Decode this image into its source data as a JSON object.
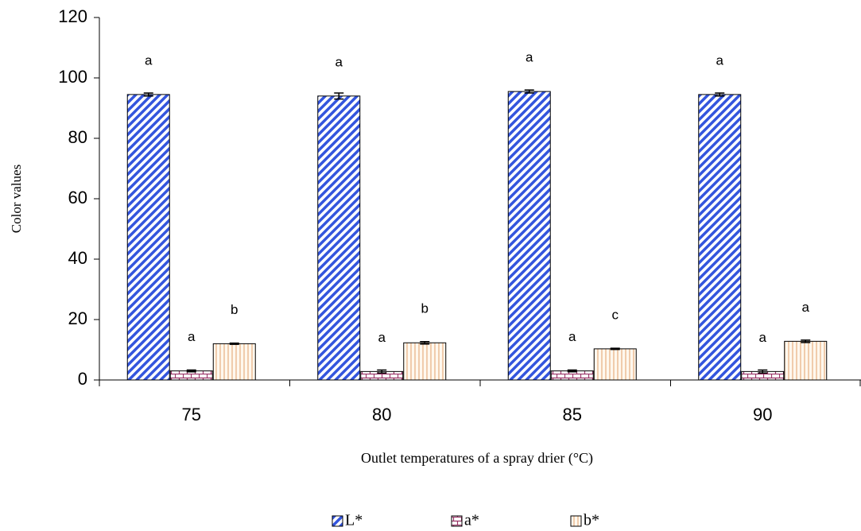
{
  "chart_data": {
    "type": "bar",
    "y_label": "Color values",
    "x_label": "Outlet temperatures of a spray drier (°C)",
    "categories": [
      "75",
      "80",
      "85",
      "90"
    ],
    "series": [
      {
        "name": "L*",
        "color": "#3355dd",
        "values": [
          94.5,
          94,
          95.5,
          94.5
        ],
        "errors": [
          0.5,
          1,
          0.5,
          0.5
        ],
        "letters": [
          "a",
          "a",
          "a",
          "a"
        ]
      },
      {
        "name": "a*",
        "color": "#993366",
        "values": [
          3,
          2.8,
          3,
          2.8
        ],
        "errors": [
          0.3,
          0.5,
          0.3,
          0.5
        ],
        "letters": [
          "a",
          "a",
          "a",
          "a"
        ]
      },
      {
        "name": "b*",
        "color": "#e8b48a",
        "values": [
          12,
          12.3,
          10.3,
          12.8
        ],
        "errors": [
          0.2,
          0.4,
          0.2,
          0.4
        ],
        "letters": [
          "b",
          "b",
          "c",
          "a"
        ]
      }
    ],
    "ylim": [
      0,
      120
    ],
    "yticks": [
      0,
      20,
      40,
      60,
      80,
      100,
      120
    ],
    "grid": false,
    "legend": "bottom"
  }
}
